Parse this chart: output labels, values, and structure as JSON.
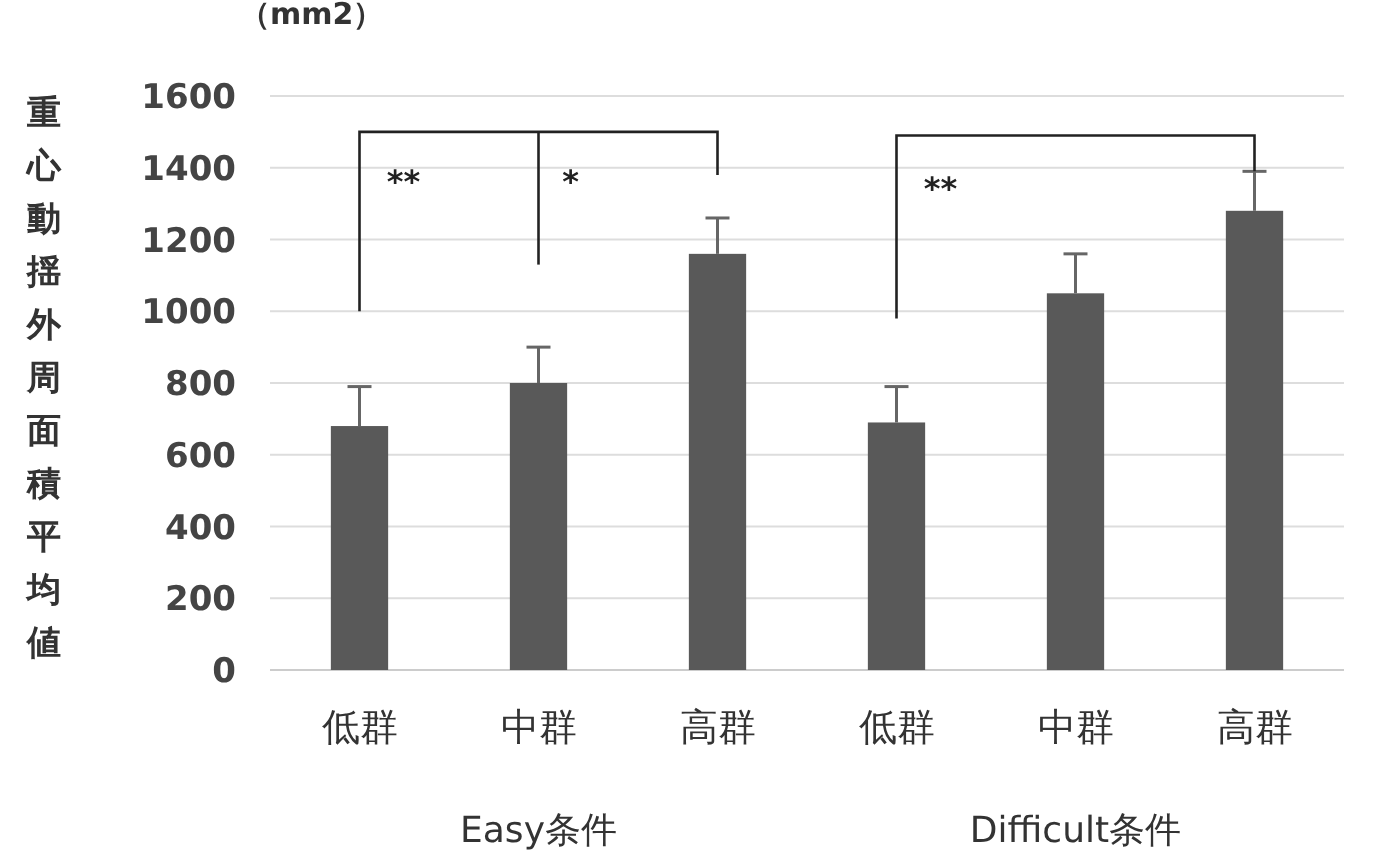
{
  "chart_data": {
    "type": "bar",
    "subtitle": "（mm2）",
    "ylabel": "重心動揺外周面積平均値",
    "categories": [
      "低群",
      "中群",
      "高群",
      "低群",
      "中群",
      "高群"
    ],
    "values": [
      680,
      800,
      1160,
      690,
      1050,
      1280
    ],
    "errors": [
      [
        680,
        790
      ],
      [
        800,
        900
      ],
      [
        1160,
        1260
      ],
      [
        690,
        790
      ],
      [
        1050,
        1160
      ],
      [
        1280,
        1390
      ]
    ],
    "color": "#595959",
    "ylim": [
      0,
      1600
    ],
    "yticks": [
      0,
      200,
      400,
      600,
      800,
      1000,
      1200,
      1400,
      1600
    ],
    "grid": "y",
    "annotations": [
      "Easy条件",
      "Difficult条件",
      "**",
      "*",
      "**"
    ]
  }
}
